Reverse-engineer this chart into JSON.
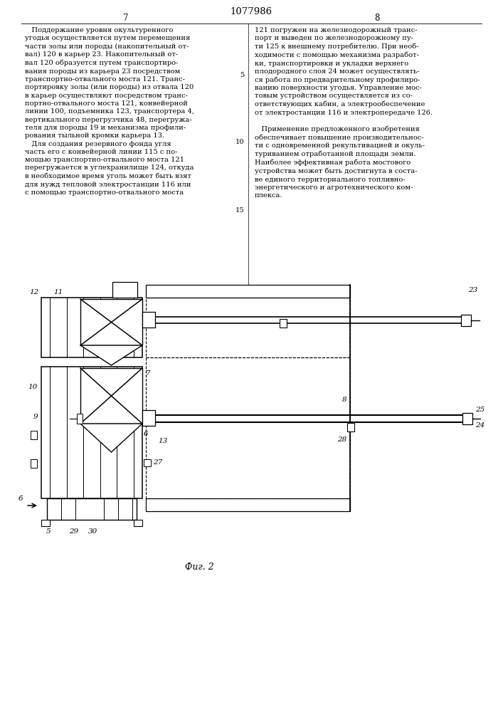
{
  "title": "1077986",
  "page_left": "7",
  "page_right": "8",
  "fig_caption": "Фиг. 2",
  "bg_color": "#ffffff",
  "line_color": "#000000",
  "text_color": "#000000",
  "text_fontsize": 7.1,
  "label_fontsize": 7.5
}
